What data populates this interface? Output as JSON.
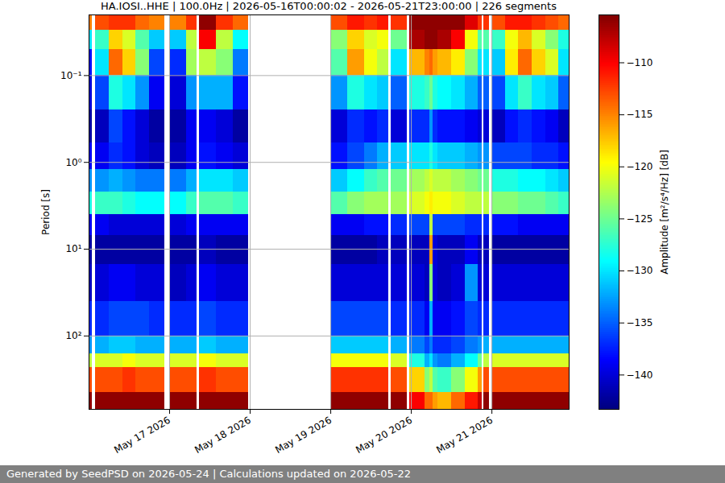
{
  "chart_data": {
    "type": "heatmap",
    "title": "HA.IOSI..HHE | 100.0Hz | 2026-05-16T00:00:02 - 2026-05-21T23:00:00 | 226 segments",
    "caption": "Generated by SeedPSD on 2026-05-24 | Calculations updated on 2026-05-22",
    "ylabel": "Period [s]",
    "log": "y",
    "grid": true,
    "color": "jet",
    "xlim": [
      "2026-05-16T00:00:02",
      "2026-05-21T23:00:00"
    ],
    "xticks": [
      {
        "value": "2026-05-17T00:00:00",
        "label": "May 17 2026"
      },
      {
        "value": "2026-05-18T00:00:00",
        "label": "May 18 2026"
      },
      {
        "value": "2026-05-19T00:00:00",
        "label": "May 19 2026"
      },
      {
        "value": "2026-05-20T00:00:00",
        "label": "May 20 2026"
      },
      {
        "value": "2026-05-21T00:00:00",
        "label": "May 21 2026"
      }
    ],
    "ylim": [
      0.02,
      700
    ],
    "yticks": [
      {
        "value": 0.1,
        "label": "10⁻¹"
      },
      {
        "value": 1,
        "label": "10⁰"
      },
      {
        "value": 10,
        "label": "10¹"
      },
      {
        "value": 100,
        "label": "10²"
      }
    ],
    "x_bins": [
      "2026-05-16T00:00",
      "2026-05-16T01:00",
      "2026-05-16T02:00",
      "2026-05-16T06:00",
      "2026-05-16T10:00",
      "2026-05-16T14:00",
      "2026-05-16T18:00",
      "2026-05-16T22:40",
      "2026-05-17T00:10",
      "2026-05-17T05:00",
      "2026-05-17T08:10",
      "2026-05-17T08:50",
      "2026-05-17T14:00",
      "2026-05-17T19:00",
      "2026-05-17T23:30",
      "2026-05-19T00:00",
      "2026-05-19T05:00",
      "2026-05-19T10:00",
      "2026-05-19T14:00",
      "2026-05-19T17:20",
      "2026-05-19T18:00",
      "2026-05-19T22:50",
      "2026-05-19T23:30",
      "2026-05-20T04:00",
      "2026-05-20T05:30",
      "2026-05-20T06:30",
      "2026-05-20T08:00",
      "2026-05-20T12:00",
      "2026-05-20T16:00",
      "2026-05-20T20:00",
      "2026-05-20T21:00",
      "2026-05-20T21:30",
      "2026-05-20T23:20",
      "2026-05-21T00:00",
      "2026-05-21T04:00",
      "2026-05-21T08:00",
      "2026-05-21T12:00",
      "2026-05-21T16:00",
      "2026-05-21T20:00",
      "2026-05-21T23:00"
    ],
    "y_bins": [
      0.02,
      0.03,
      0.05,
      0.1,
      0.25,
      0.6,
      1.2,
      2.2,
      4,
      7,
      15,
      40,
      100,
      160,
      230,
      450,
      700
    ],
    "values": [
      [
        -115,
        -130,
        -138,
        -140,
        -142,
        -139,
        -133,
        -128,
        -139,
        -142,
        -141,
        -137,
        -133,
        -122,
        -113,
        -106
      ],
      null,
      [
        -113,
        -127,
        -130,
        -136,
        -141,
        -139,
        -133,
        -127,
        -139,
        -142,
        -140,
        -137,
        -132,
        -121,
        -113,
        -106
      ],
      [
        -112,
        -118,
        -114,
        -128,
        -136,
        -137,
        -132,
        -127,
        -140,
        -142,
        -139,
        -136,
        -131,
        -121,
        -113,
        -106
      ],
      [
        -112,
        -121,
        -118,
        -130,
        -138,
        -138,
        -133,
        -128,
        -140,
        -142,
        -139,
        -136,
        -131,
        -120,
        -112,
        -106
      ],
      [
        -114,
        -126,
        -124,
        -133,
        -140,
        -140,
        -134,
        -129,
        -140,
        -142,
        -140,
        -136,
        -132,
        -121,
        -113,
        -106
      ],
      [
        -115,
        -131,
        -136,
        -139,
        -142,
        -141,
        -134,
        -129,
        -140,
        -142,
        -140,
        -137,
        -132,
        -121,
        -113,
        -106
      ],
      null,
      [
        -115,
        -131,
        -137,
        -140,
        -142,
        -141,
        -134,
        -129,
        -140,
        -142,
        -141,
        -137,
        -132,
        -121,
        -113,
        -106
      ],
      [
        -112,
        -122,
        -123,
        -133,
        -139,
        -139,
        -132,
        -127,
        -139,
        -142,
        -140,
        -137,
        -132,
        -121,
        -113,
        -106
      ],
      null,
      [
        -106,
        -110,
        -122,
        -132,
        -139,
        -138,
        -130,
        -126,
        -139,
        -141,
        -139,
        -136,
        -131,
        -120,
        -112,
        -106
      ],
      [
        -112,
        -122,
        -124,
        -132,
        -140,
        -139,
        -130,
        -126,
        -139,
        -142,
        -140,
        -137,
        -132,
        -121,
        -113,
        -106
      ],
      [
        -114,
        -129,
        -134,
        -138,
        -142,
        -140,
        -131,
        -127,
        -139,
        -142,
        -140,
        -137,
        -132,
        -121,
        -113,
        -106
      ],
      null,
      [
        -113,
        -124,
        -126,
        -133,
        -140,
        -138,
        -131,
        -126,
        -139,
        -142,
        -140,
        -136,
        -131,
        -120,
        -112,
        -106
      ],
      [
        -111,
        -118,
        -116,
        -128,
        -137,
        -136,
        -129,
        -124,
        -139,
        -142,
        -140,
        -136,
        -131,
        -120,
        -112,
        -106
      ],
      [
        -112,
        -121,
        -120,
        -130,
        -138,
        -134,
        -127,
        -123,
        -138,
        -142,
        -140,
        -136,
        -131,
        -120,
        -112,
        -106
      ],
      [
        -111,
        -120,
        -122,
        -131,
        -137,
        -132,
        -126,
        -123,
        -138,
        -141,
        -140,
        -136,
        -131,
        -120,
        -112,
        -106
      ],
      null,
      [
        -112,
        -125,
        -130,
        -135,
        -140,
        -131,
        -125,
        -123,
        -137,
        -141,
        -140,
        -137,
        -132,
        -121,
        -113,
        -106
      ],
      null,
      [
        -106,
        -107,
        -117,
        -128,
        -137,
        -130,
        -123,
        -121,
        -136,
        -141,
        -140,
        -137,
        -134,
        -128,
        -118,
        -110
      ],
      [
        -106,
        -106,
        -115,
        -127,
        -137,
        -130,
        -122,
        -120,
        -136,
        -141,
        -141,
        -139,
        -136,
        -132,
        -124,
        -114
      ],
      [
        -106,
        -106,
        -114,
        -125,
        -133,
        -128,
        -121,
        -119,
        -122,
        -116,
        -124,
        -132,
        -134,
        -130,
        -122,
        -114
      ],
      [
        -106,
        -106,
        -116,
        -128,
        -137,
        -130,
        -122,
        -120,
        -136,
        -140,
        -140,
        -139,
        -137,
        -133,
        -126,
        -116
      ],
      [
        -106,
        -107,
        -117,
        -129,
        -138,
        -131,
        -122,
        -120,
        -136,
        -141,
        -141,
        -139,
        -137,
        -134,
        -127,
        -117
      ],
      [
        -106,
        -110,
        -119,
        -130,
        -138,
        -131,
        -123,
        -121,
        -136,
        -141,
        -140,
        -138,
        -136,
        -132,
        -124,
        -114
      ],
      [
        -109,
        -120,
        -124,
        -132,
        -139,
        -132,
        -124,
        -122,
        -137,
        -139,
        -133,
        -136,
        -134,
        -129,
        -120,
        -111
      ],
      [
        -112,
        -126,
        -130,
        -135,
        -140,
        -133,
        -125,
        -122,
        -137,
        -141,
        -140,
        -137,
        -133,
        -125,
        -116,
        -108
      ],
      null,
      [
        -112,
        -126,
        -130,
        -135,
        -140,
        -133,
        -125,
        -122,
        -137,
        -141,
        -140,
        -137,
        -132,
        -122,
        -113,
        -106
      ],
      null,
      [
        -113,
        -127,
        -131,
        -136,
        -141,
        -136,
        -128,
        -124,
        -138,
        -142,
        -140,
        -137,
        -132,
        -121,
        -113,
        -106
      ],
      [
        -111,
        -120,
        -119,
        -130,
        -138,
        -136,
        -128,
        -124,
        -138,
        -142,
        -140,
        -137,
        -132,
        -121,
        -113,
        -106
      ],
      [
        -111,
        -117,
        -114,
        -127,
        -137,
        -136,
        -129,
        -125,
        -139,
        -142,
        -140,
        -137,
        -132,
        -121,
        -113,
        -106
      ],
      [
        -112,
        -121,
        -118,
        -130,
        -138,
        -137,
        -129,
        -125,
        -139,
        -142,
        -140,
        -137,
        -132,
        -121,
        -113,
        -106
      ],
      [
        -113,
        -124,
        -121,
        -131,
        -139,
        -137,
        -130,
        -126,
        -139,
        -142,
        -140,
        -137,
        -132,
        -121,
        -113,
        -106
      ],
      [
        -114,
        -128,
        -130,
        -135,
        -141,
        -138,
        -131,
        -127,
        -139,
        -142,
        -140,
        -137,
        -132,
        -121,
        -113,
        -106
      ]
    ],
    "colorbar": {
      "label": "Amplitude [m²/s⁴/Hz] [dB]",
      "lim": [
        -143.3,
        -105.4
      ],
      "ticks": [
        {
          "value": -110,
          "label": "−110"
        },
        {
          "value": -115,
          "label": "−115"
        },
        {
          "value": -120,
          "label": "−120"
        },
        {
          "value": -125,
          "label": "−125"
        },
        {
          "value": -130,
          "label": "−130"
        },
        {
          "value": -135,
          "label": "−135"
        },
        {
          "value": -140,
          "label": "−140"
        }
      ]
    }
  }
}
